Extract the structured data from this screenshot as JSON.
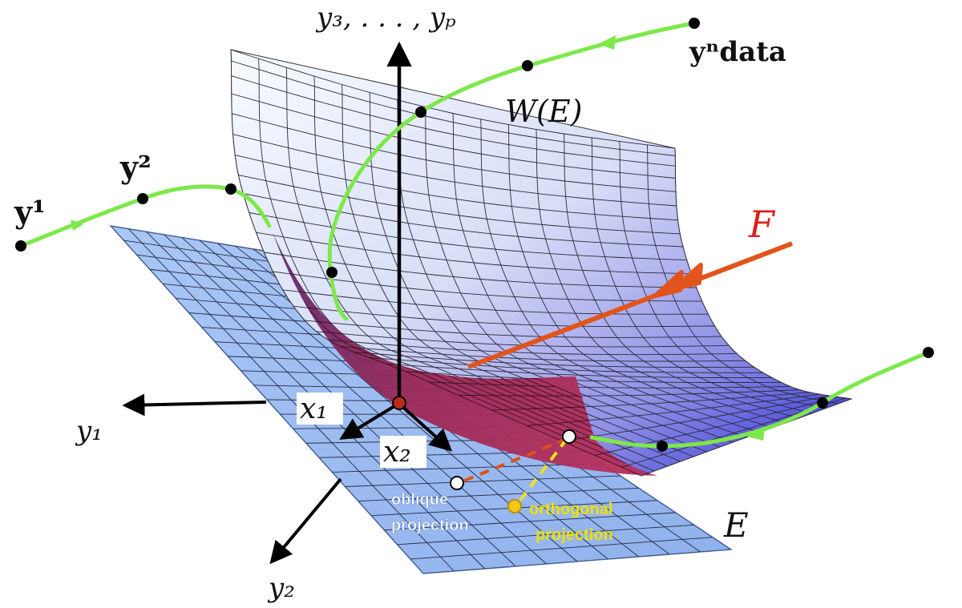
{
  "colors": {
    "plane_fill": "#9dbcf0",
    "plane_stroke": "#5f7fbf",
    "grid": "#222a44",
    "surface_top": "#f6fbff",
    "surface_mid": "#b9c2f0",
    "surface_right": "#3a33d6",
    "surface_fold": "#8b2550",
    "trajectory": "#7de84a",
    "force": "#e2541c",
    "oblique_dash": "#d9531c",
    "ortho_dash": "#f2e020",
    "ortho_label": "#f0e000",
    "oblique_label": "#ffffff",
    "axes": "#000000",
    "origin": "#c0281c"
  },
  "labels": {
    "axis_top": "y₃, . . . , yₚ",
    "axis_y1": "y₁",
    "axis_y2": "y₂",
    "coord_x1": "x₁",
    "coord_x2": "x₂",
    "surface_W": "W(E)",
    "force_F": "F",
    "plane_E": "E",
    "traj_y1": "y¹",
    "traj_y2": "y²",
    "traj_ydata": "yⁿdata",
    "oblique_line1": "oblique",
    "oblique_line2": "projection",
    "ortho_line1": "orthogonal",
    "ortho_line2": "projection"
  },
  "icons": {
    "trajectory_arrow": "arrowhead-icon",
    "force_arrow": "double-arrowhead-icon",
    "axis_arrow": "arrowhead-icon"
  }
}
